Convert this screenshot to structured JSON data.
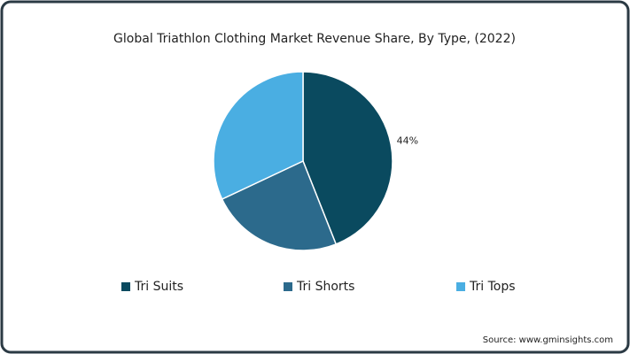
{
  "chart_data": {
    "type": "pie",
    "title": "Global Triathlon Clothing Market Revenue Share, By Type, (2022)",
    "categories": [
      "Tri Suits",
      "Tri Shorts",
      "Tri Tops"
    ],
    "values": [
      44,
      24,
      32
    ],
    "value_labels": [
      "44%",
      null,
      null
    ],
    "colors": [
      "#0a4a5f",
      "#2c6a8c",
      "#4aaee2"
    ],
    "source": "Source: www.gminsights.com"
  }
}
